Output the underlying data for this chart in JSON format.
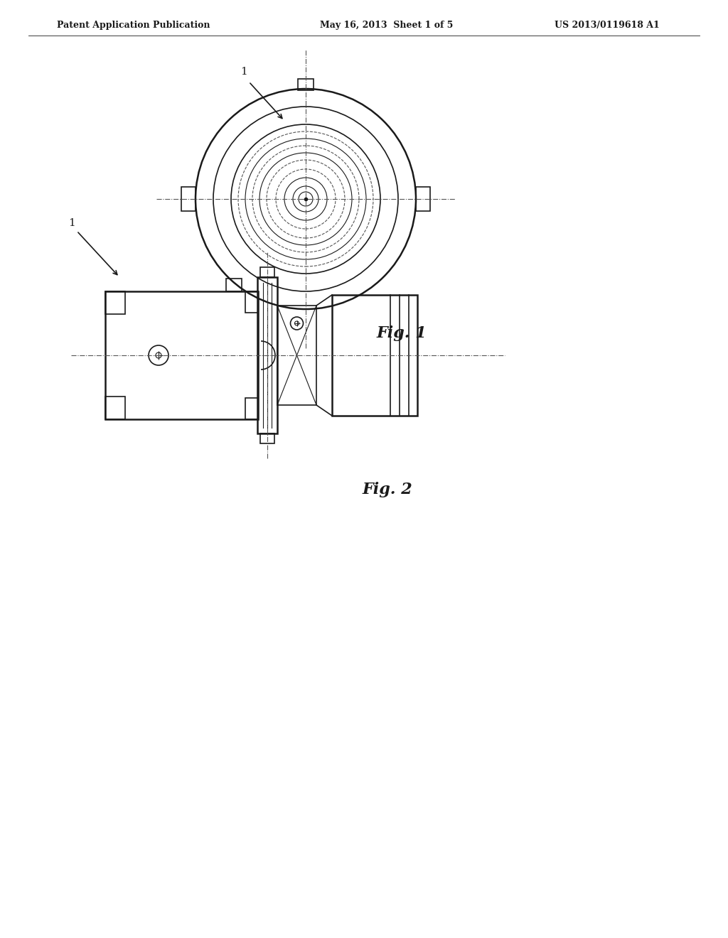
{
  "background_color": "#ffffff",
  "header_left": "Patent Application Publication",
  "header_center": "May 16, 2013  Sheet 1 of 5",
  "header_right": "US 2013/0119618 A1",
  "header_fontsize": 9,
  "fig1_label": "Fig. 1",
  "fig2_label": "Fig. 2",
  "label_1": "1",
  "fig1_label_fontsize": 14,
  "fig2_label_fontsize": 14,
  "line_color": "#1a1a1a",
  "dash_color": "#555555",
  "thin_lw": 0.8,
  "medium_lw": 1.2,
  "thick_lw": 1.8
}
